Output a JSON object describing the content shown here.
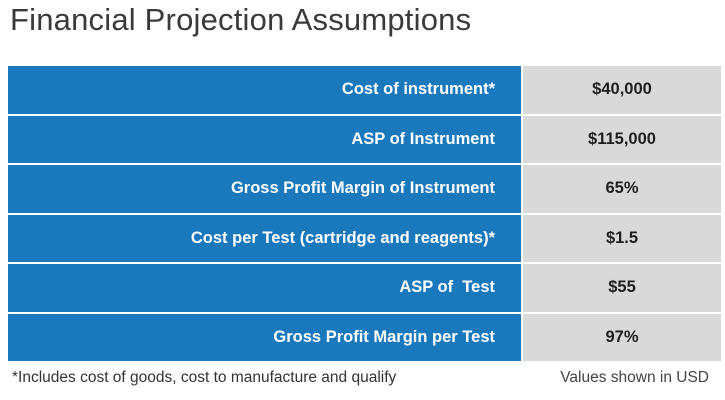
{
  "title": "Financial Projection Assumptions",
  "table": {
    "rows": [
      {
        "label": "Cost of instrument*",
        "value": "$40,000"
      },
      {
        "label": "ASP of Instrument",
        "value": "$115,000"
      },
      {
        "label": "Gross Profit Margin of Instrument",
        "value": "65%"
      },
      {
        "label": "Cost per Test (cartridge and reagents)*",
        "value": "$1.5"
      },
      {
        "label": "ASP of  Test",
        "value": "$55"
      },
      {
        "label": "Gross Profit Margin per Test",
        "value": "97%"
      }
    ]
  },
  "footnote": "*Includes cost of goods, cost to manufacture and qualify",
  "units_note": "Values shown in USD",
  "colors": {
    "label_background": "#1a78bd",
    "value_background": "#d9d9d9"
  }
}
